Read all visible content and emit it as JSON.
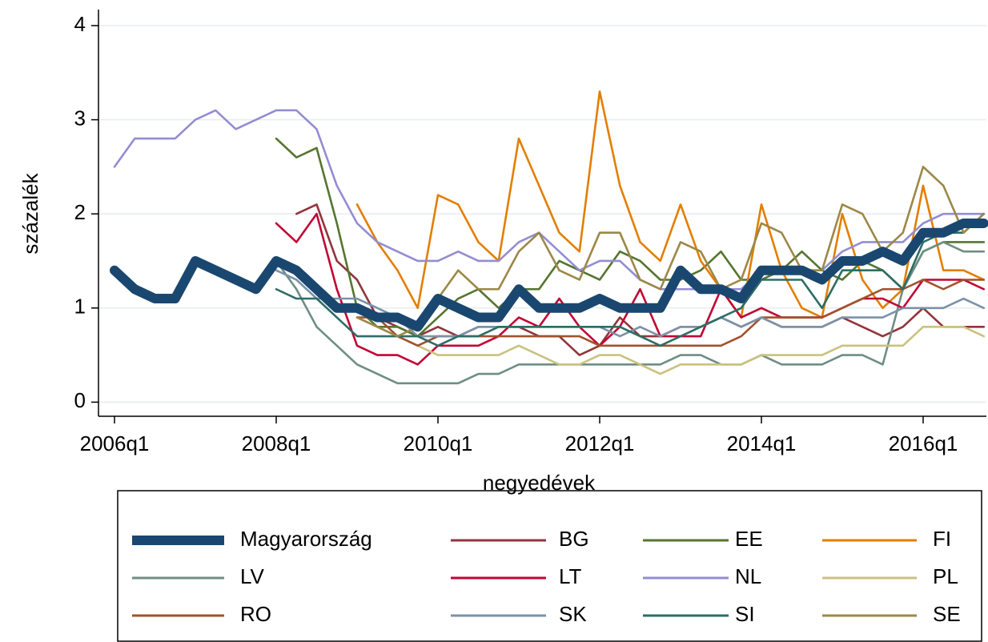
{
  "chart_data": {
    "type": "line",
    "y_label": "százalék",
    "x_label": "negyedévek",
    "x": [
      "2006q1",
      "2006q2",
      "2006q3",
      "2006q4",
      "2007q1",
      "2007q2",
      "2007q3",
      "2007q4",
      "2008q1",
      "2008q2",
      "2008q3",
      "2008q4",
      "2009q1",
      "2009q2",
      "2009q3",
      "2009q4",
      "2010q1",
      "2010q2",
      "2010q3",
      "2010q4",
      "2011q1",
      "2011q2",
      "2011q3",
      "2011q4",
      "2012q1",
      "2012q2",
      "2012q3",
      "2012q4",
      "2013q1",
      "2013q2",
      "2013q3",
      "2013q4",
      "2014q1",
      "2014q2",
      "2014q3",
      "2014q4",
      "2015q1",
      "2015q2",
      "2015q3",
      "2015q4",
      "2016q1",
      "2016q2",
      "2016q3",
      "2016q4"
    ],
    "xticks": [
      "2006q1",
      "2008q1",
      "2010q1",
      "2012q1",
      "2014q1",
      "2016q1"
    ],
    "ylim": [
      -0.15,
      4.17
    ],
    "yticks": [
      0,
      1,
      2,
      3,
      4
    ],
    "grid": true,
    "series": [
      {
        "name": "Magyarország",
        "color": "#1a476f",
        "values": [
          1.4,
          1.2,
          1.1,
          1.1,
          1.5,
          1.4,
          1.3,
          1.2,
          1.5,
          1.4,
          1.2,
          1.0,
          1.0,
          0.9,
          0.9,
          0.8,
          1.1,
          1.0,
          0.9,
          0.9,
          1.2,
          1.0,
          1.0,
          1.0,
          1.1,
          1.0,
          1.0,
          1.0,
          1.4,
          1.2,
          1.2,
          1.1,
          1.4,
          1.4,
          1.4,
          1.3,
          1.5,
          1.5,
          1.6,
          1.5,
          1.8,
          1.8,
          1.9,
          1.9
        ]
      },
      {
        "name": "BG",
        "color": "#90353b",
        "values": [
          null,
          null,
          null,
          null,
          null,
          null,
          null,
          null,
          null,
          2.0,
          2.1,
          1.5,
          1.3,
          0.9,
          0.8,
          0.7,
          0.8,
          0.7,
          0.8,
          0.8,
          0.8,
          0.7,
          0.7,
          0.5,
          0.6,
          0.9,
          0.7,
          0.7,
          0.8,
          0.8,
          0.9,
          0.8,
          0.9,
          0.8,
          0.8,
          0.8,
          0.9,
          0.8,
          0.7,
          0.8,
          1.0,
          0.8,
          0.8,
          0.8
        ]
      },
      {
        "name": "EE",
        "color": "#55752f",
        "values": [
          null,
          null,
          null,
          null,
          null,
          null,
          null,
          null,
          2.8,
          2.6,
          2.7,
          1.9,
          1.0,
          0.8,
          0.8,
          0.7,
          0.9,
          1.1,
          1.2,
          1.0,
          1.2,
          1.2,
          1.5,
          1.4,
          1.3,
          1.6,
          1.5,
          1.3,
          1.3,
          1.4,
          1.6,
          1.3,
          1.3,
          1.4,
          1.6,
          1.4,
          1.3,
          1.5,
          1.4,
          1.2,
          1.6,
          1.7,
          1.7,
          1.7
        ]
      },
      {
        "name": "FI",
        "color": "#e37e00",
        "values": [
          null,
          null,
          null,
          null,
          null,
          null,
          null,
          null,
          null,
          null,
          null,
          null,
          2.1,
          1.7,
          1.4,
          1.0,
          2.2,
          2.1,
          1.7,
          1.5,
          2.8,
          2.3,
          1.8,
          1.6,
          3.3,
          2.3,
          1.7,
          1.5,
          2.1,
          1.5,
          1.2,
          0.9,
          2.1,
          1.4,
          1.0,
          0.9,
          2.0,
          1.3,
          1.0,
          1.2,
          2.3,
          1.4,
          1.4,
          1.3
        ]
      },
      {
        "name": "LV",
        "color": "#6e8e84",
        "values": [
          null,
          null,
          null,
          null,
          null,
          null,
          null,
          null,
          1.5,
          1.2,
          0.8,
          0.6,
          0.4,
          0.3,
          0.2,
          0.2,
          0.2,
          0.2,
          0.3,
          0.3,
          0.4,
          0.4,
          0.4,
          0.4,
          0.4,
          0.4,
          0.4,
          0.4,
          0.5,
          0.5,
          0.4,
          0.4,
          0.5,
          0.4,
          0.4,
          0.4,
          0.5,
          0.5,
          0.4,
          1.2,
          1.6,
          1.7,
          1.6,
          1.6
        ]
      },
      {
        "name": "LT",
        "color": "#c10534",
        "values": [
          null,
          null,
          null,
          null,
          null,
          null,
          null,
          null,
          1.9,
          1.7,
          2.0,
          1.2,
          0.6,
          0.5,
          0.5,
          0.4,
          0.6,
          0.6,
          0.6,
          0.7,
          0.9,
          0.8,
          1.1,
          0.8,
          0.6,
          0.8,
          1.2,
          0.7,
          0.7,
          0.7,
          1.2,
          0.9,
          1.0,
          0.9,
          0.9,
          0.9,
          1.0,
          1.1,
          1.1,
          1.0,
          1.3,
          1.3,
          1.3,
          1.2
        ]
      },
      {
        "name": "NL",
        "color": "#938dd2",
        "values": [
          2.5,
          2.8,
          2.8,
          2.8,
          3.0,
          3.1,
          2.9,
          3.0,
          3.1,
          3.1,
          2.9,
          2.3,
          1.9,
          1.7,
          1.6,
          1.5,
          1.5,
          1.6,
          1.5,
          1.5,
          1.7,
          1.8,
          1.6,
          1.4,
          1.5,
          1.5,
          1.3,
          1.2,
          1.2,
          1.2,
          1.2,
          1.2,
          1.4,
          1.4,
          1.4,
          1.4,
          1.6,
          1.7,
          1.7,
          1.7,
          1.9,
          2.0,
          2.0,
          2.0
        ]
      },
      {
        "name": "PL",
        "color": "#cac27e",
        "values": [
          null,
          null,
          null,
          null,
          null,
          null,
          null,
          null,
          null,
          null,
          null,
          null,
          0.9,
          0.8,
          0.7,
          0.6,
          0.5,
          0.5,
          0.5,
          0.5,
          0.6,
          0.5,
          0.4,
          0.4,
          0.5,
          0.5,
          0.4,
          0.3,
          0.4,
          0.4,
          0.4,
          0.4,
          0.5,
          0.5,
          0.5,
          0.5,
          0.6,
          0.6,
          0.6,
          0.6,
          0.8,
          0.8,
          0.8,
          0.7
        ]
      },
      {
        "name": "RO",
        "color": "#a0522d",
        "values": [
          null,
          null,
          null,
          null,
          null,
          null,
          null,
          null,
          null,
          null,
          null,
          null,
          0.9,
          0.9,
          0.7,
          0.6,
          0.7,
          0.7,
          0.7,
          0.7,
          0.7,
          0.7,
          0.7,
          0.7,
          0.6,
          0.6,
          0.6,
          0.6,
          0.6,
          0.6,
          0.6,
          0.7,
          0.9,
          0.9,
          0.9,
          0.9,
          1.0,
          1.1,
          1.2,
          1.2,
          1.3,
          1.2,
          1.3,
          1.3
        ]
      },
      {
        "name": "SK",
        "color": "#7b92a8",
        "values": [
          null,
          null,
          null,
          null,
          null,
          null,
          null,
          null,
          1.4,
          1.3,
          1.1,
          1.1,
          1.1,
          1.0,
          0.9,
          0.7,
          0.7,
          0.7,
          0.8,
          0.8,
          0.8,
          0.8,
          0.8,
          0.8,
          0.8,
          0.7,
          0.8,
          0.7,
          0.8,
          0.8,
          0.9,
          0.8,
          0.9,
          0.8,
          0.8,
          0.8,
          0.9,
          0.9,
          0.9,
          1.0,
          1.0,
          1.0,
          1.1,
          1.0
        ]
      },
      {
        "name": "SI",
        "color": "#2d6d66",
        "values": [
          null,
          null,
          null,
          null,
          null,
          null,
          null,
          null,
          1.2,
          1.1,
          1.1,
          0.9,
          0.7,
          0.7,
          0.7,
          0.7,
          0.6,
          0.7,
          0.7,
          0.8,
          0.8,
          0.8,
          0.8,
          0.8,
          0.8,
          0.8,
          0.7,
          0.6,
          0.7,
          0.8,
          0.9,
          1.0,
          1.3,
          1.3,
          1.3,
          1.0,
          1.4,
          1.4,
          1.4,
          1.2,
          1.7,
          1.8,
          1.8,
          2.0
        ]
      },
      {
        "name": "SE",
        "color": "#9c8847",
        "values": [
          null,
          null,
          null,
          null,
          null,
          null,
          null,
          null,
          null,
          null,
          null,
          null,
          0.9,
          0.8,
          0.7,
          0.8,
          1.1,
          1.4,
          1.2,
          1.2,
          1.6,
          1.8,
          1.4,
          1.3,
          1.8,
          1.8,
          1.3,
          1.2,
          1.7,
          1.6,
          1.2,
          1.3,
          1.9,
          1.8,
          1.4,
          1.4,
          2.1,
          2.0,
          1.6,
          1.8,
          2.5,
          2.3,
          1.8,
          2.0
        ]
      }
    ]
  }
}
